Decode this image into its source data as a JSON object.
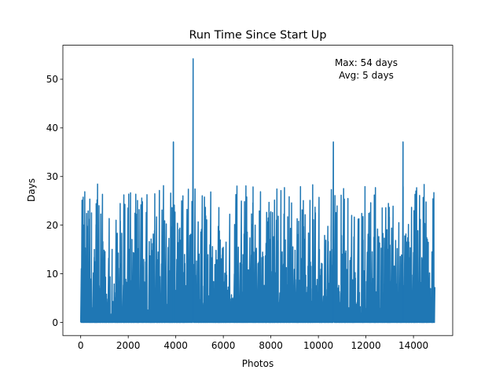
{
  "chart_data": {
    "type": "line",
    "title": "Run Time Since Start Up",
    "xlabel": "Photos",
    "ylabel": "Days",
    "xlim": [
      -750,
      15650
    ],
    "ylim": [
      -2.7,
      57
    ],
    "xticks": [
      0,
      2000,
      4000,
      6000,
      8000,
      10000,
      12000,
      14000
    ],
    "yticks": [
      0,
      10,
      20,
      30,
      40,
      50
    ],
    "grid": false,
    "legend": "none",
    "series_color": "#1f77b4",
    "annotation": {
      "lines": [
        "Max: 54 days",
        "Avg: 5 days"
      ],
      "position": "top-right"
    },
    "series": [
      {
        "name": "",
        "x_range": [
          0,
          14900
        ],
        "n_points": 14900,
        "min": 0,
        "max": 54.2,
        "typical_peak": 26,
        "spikes": [
          {
            "x": 3900,
            "y": 37.1
          },
          {
            "x": 4730,
            "y": 54.2
          },
          {
            "x": 10630,
            "y": 37.1
          },
          {
            "x": 13560,
            "y": 37.1
          }
        ]
      }
    ]
  }
}
